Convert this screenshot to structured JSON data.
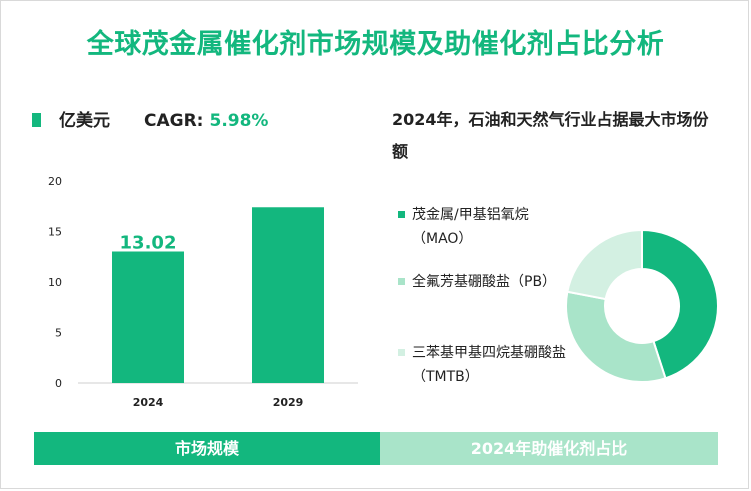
{
  "title": "全球茂金属催化剂市场规模及助催化剂占比分析",
  "unit_label": "亿美元",
  "cagr_label": "CAGR:",
  "cagr_value": "5.98%",
  "pie_title": "2024年，石油和天然气行业占据最大市场份额",
  "legend": [
    {
      "label": "茂金属/甲基铝氧烷（MAO）",
      "color": "#13b77e"
    },
    {
      "label": "全氟芳基硼酸盐（PB）",
      "color": "#a9e4c9"
    },
    {
      "label": "三苯基甲基四烷基硼酸盐（TMTB）",
      "color": "#d3f0e2"
    }
  ],
  "footer": {
    "left": "市场规模",
    "right": "2024年助催化剂占比"
  },
  "colors": {
    "accent": "#13b77e",
    "light": "#a9e4c9",
    "lighter": "#d3f0e2"
  },
  "chart_data": [
    {
      "type": "bar",
      "categories": [
        "2024",
        "2029"
      ],
      "values": [
        13.02,
        17.4
      ],
      "data_labels": [
        "13.02",
        ""
      ],
      "ylim": [
        0,
        20
      ],
      "yticks": [
        0,
        5,
        10,
        15,
        20
      ],
      "grid": false
    },
    {
      "type": "pie",
      "donut": true,
      "labels": [
        "茂金属/甲基铝氧烷（MAO）",
        "全氟芳基硼酸盐（PB）",
        "三苯基甲基四烷基硼酸盐（TMTB）"
      ],
      "values": [
        45,
        33,
        22
      ],
      "colors": [
        "#13b77e",
        "#a9e4c9",
        "#d3f0e2"
      ]
    }
  ]
}
